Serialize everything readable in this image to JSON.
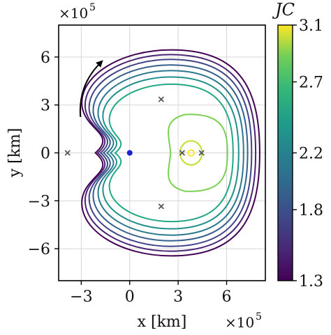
{
  "chart_data": {
    "type": "contour",
    "xlabel": "x [km]",
    "ylabel": "y [km]",
    "x_scale_label": "×10",
    "x_scale_exp": "5",
    "y_scale_label": "×10",
    "y_scale_exp": "5",
    "xlim": [
      -4.4,
      8.4
    ],
    "ylim": [
      -8.0,
      8.0
    ],
    "x_ticks": [
      -3,
      0,
      3,
      6
    ],
    "x_tick_labels": [
      "−3",
      "0",
      "3",
      "6"
    ],
    "y_ticks": [
      -6,
      -3,
      0,
      3,
      6
    ],
    "y_tick_labels": [
      "−6",
      "−3",
      "0",
      "3",
      "6"
    ],
    "grid": true,
    "colormap": "viridis",
    "colorbar": {
      "title": "JC",
      "range": [
        1.3,
        3.1
      ],
      "ticks": [
        1.3,
        1.8,
        2.2,
        2.7,
        3.1
      ],
      "tick_labels": [
        "1.3",
        "1.8",
        "2.2",
        "2.7",
        "3.1"
      ]
    },
    "contours": [
      {
        "jc": 1.3,
        "x_min": -2.95,
        "x_max": 8.05,
        "y_half": 6.45,
        "color": "#440154"
      },
      {
        "jc": 1.45,
        "x_min": -2.75,
        "x_max": 7.8,
        "y_half": 6.15,
        "color": "#482374"
      },
      {
        "jc": 1.6,
        "x_min": -2.5,
        "x_max": 7.55,
        "y_half": 5.85,
        "color": "#404387"
      },
      {
        "jc": 1.78,
        "x_min": -2.25,
        "x_max": 7.3,
        "y_half": 5.5,
        "color": "#345e8d"
      },
      {
        "jc": 1.95,
        "x_min": -1.95,
        "x_max": 7.05,
        "y_half": 5.15,
        "color": "#2a788e"
      },
      {
        "jc": 2.15,
        "x_min": -1.65,
        "x_max": 6.75,
        "y_half": 4.75,
        "color": "#21908d"
      },
      {
        "jc": 2.4,
        "x_min": -1.25,
        "x_max": 6.4,
        "y_half": 4.3,
        "color": "#22a884"
      },
      {
        "jc": 2.6,
        "x_min": 2.05,
        "x_max": 6.05,
        "y_half": 2.4,
        "color": "#7ad151"
      }
    ],
    "moon_loop": {
      "jc": 2.98,
      "center_x": 3.8,
      "rx": 0.68,
      "ry": 0.75,
      "color": "#bddf26"
    },
    "moon_inner": {
      "jc": 3.1,
      "center_x": 3.8,
      "radius": 0.12,
      "color": "#fde725"
    },
    "earth": {
      "x": 0.0,
      "y": 0.0,
      "color": "#1f1fd6"
    },
    "lagrange_points": [
      {
        "name": "L1",
        "x": 3.25,
        "y": 0.0
      },
      {
        "name": "L2",
        "x": 4.45,
        "y": 0.0
      },
      {
        "name": "L3",
        "x": -3.85,
        "y": 0.0
      },
      {
        "name": "L4",
        "x": 1.95,
        "y": 3.35
      },
      {
        "name": "L5",
        "x": 1.95,
        "y": -3.35
      }
    ],
    "rotation_arrow": {
      "from": [
        -3.05,
        2.25
      ],
      "to": [
        -1.8,
        5.65
      ],
      "direction": "counterclockwise"
    }
  }
}
